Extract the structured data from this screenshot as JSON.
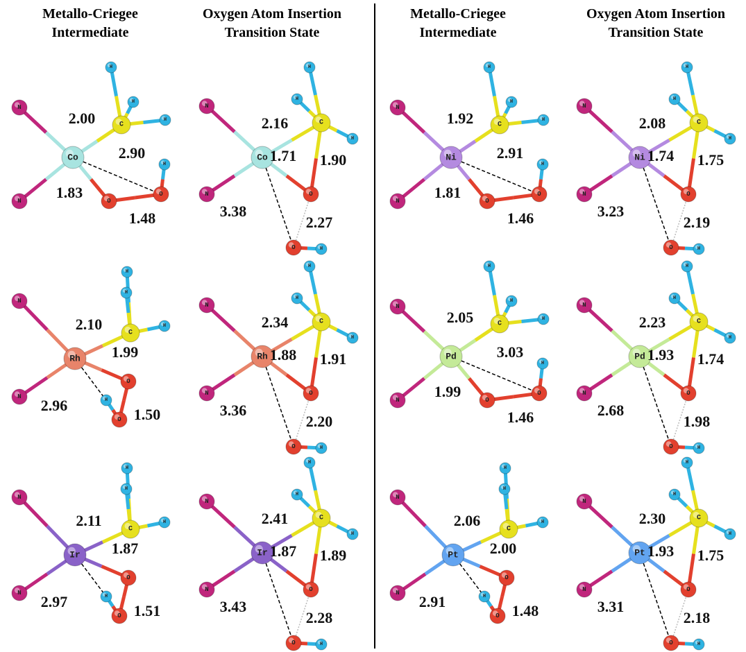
{
  "columns": [
    {
      "header": [
        "Metallo-Criegee",
        "Intermediate"
      ],
      "panels": [
        {
          "atoms": [
            "N",
            "N",
            "C",
            "H",
            "H",
            "H",
            "Co",
            "O",
            "O",
            "H"
          ],
          "metal_color": "#a8e4e0",
          "distances": [
            "2.00",
            "2.90",
            "1.83",
            "1.48"
          ]
        },
        {
          "atoms": [
            "N",
            "N",
            "C",
            "H",
            "H",
            "H",
            "Rh",
            "O",
            "O",
            "H"
          ],
          "metal_color": "#e8846a",
          "distances": [
            "2.10",
            "1.99",
            "2.96",
            "1.50"
          ]
        },
        {
          "atoms": [
            "N",
            "N",
            "C",
            "H",
            "H",
            "H",
            "Ir",
            "O",
            "O",
            "H"
          ],
          "metal_color": "#8a62c8",
          "distances": [
            "2.11",
            "1.87",
            "2.97",
            "1.51"
          ]
        }
      ]
    },
    {
      "header": [
        "Oxygen Atom Insertion",
        "Transition State"
      ],
      "panels": [
        {
          "atoms": [
            "N",
            "N",
            "C",
            "H",
            "H",
            "H",
            "Co",
            "O",
            "O",
            "H"
          ],
          "metal_color": "#a8e4e0",
          "distances": [
            "2.16",
            "1.71",
            "1.90",
            "3.38",
            "2.27"
          ]
        },
        {
          "atoms": [
            "N",
            "N",
            "C",
            "H",
            "H",
            "H",
            "Rh",
            "O",
            "O",
            "H"
          ],
          "metal_color": "#e8846a",
          "distances": [
            "2.34",
            "1.88",
            "1.91",
            "3.36",
            "2.20"
          ]
        },
        {
          "atoms": [
            "N",
            "N",
            "C",
            "H",
            "H",
            "H",
            "Ir",
            "O",
            "O",
            "H"
          ],
          "metal_color": "#8a62c8",
          "distances": [
            "2.41",
            "1.87",
            "1.89",
            "3.43",
            "2.28"
          ]
        }
      ]
    },
    {
      "header": [
        "Metallo-Criegee",
        "Intermediate"
      ],
      "panels": [
        {
          "atoms": [
            "N",
            "N",
            "C",
            "H",
            "H",
            "H",
            "Ni",
            "O",
            "O",
            "H"
          ],
          "metal_color": "#b48ae0",
          "distances": [
            "1.92",
            "2.91",
            "1.81",
            "1.46"
          ]
        },
        {
          "atoms": [
            "N",
            "N",
            "C",
            "H",
            "H",
            "H",
            "Pd",
            "O",
            "O",
            "H"
          ],
          "metal_color": "#c4ea98",
          "distances": [
            "2.05",
            "3.03",
            "1.99",
            "1.46"
          ]
        },
        {
          "atoms": [
            "N",
            "N",
            "C",
            "H",
            "H",
            "H",
            "Pt",
            "O",
            "O",
            "H"
          ],
          "metal_color": "#62a4f0",
          "distances": [
            "2.06",
            "2.00",
            "2.91",
            "1.48"
          ]
        }
      ]
    },
    {
      "header": [
        "Oxygen Atom Insertion",
        "Transition State"
      ],
      "panels": [
        {
          "atoms": [
            "N",
            "N",
            "C",
            "H",
            "H",
            "H",
            "Ni",
            "O",
            "O",
            "H"
          ],
          "metal_color": "#b48ae0",
          "distances": [
            "2.08",
            "1.74",
            "1.75",
            "3.23",
            "2.19"
          ]
        },
        {
          "atoms": [
            "N",
            "N",
            "C",
            "H",
            "H",
            "H",
            "Pd",
            "O",
            "O",
            "H"
          ],
          "metal_color": "#c4ea98",
          "distances": [
            "2.23",
            "1.93",
            "1.74",
            "2.68",
            "1.98"
          ]
        },
        {
          "atoms": [
            "N",
            "N",
            "C",
            "H",
            "H",
            "H",
            "Pt",
            "O",
            "O",
            "H"
          ],
          "metal_color": "#62a4f0",
          "distances": [
            "2.30",
            "1.93",
            "1.75",
            "3.31",
            "2.18"
          ]
        }
      ]
    }
  ]
}
